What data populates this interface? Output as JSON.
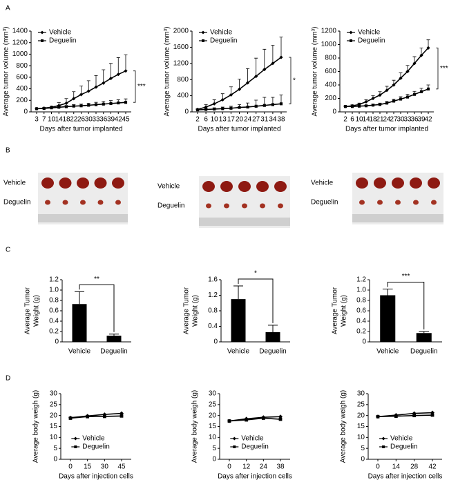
{
  "panel_labels": [
    "A",
    "B",
    "C",
    "D"
  ],
  "photos": [
    {
      "labels": [
        "Vehicle",
        "Deguelin"
      ]
    },
    {
      "labels": [
        "Vehicle",
        "Deguelin"
      ]
    },
    {
      "labels": [
        "Vehicle",
        "Deguelin"
      ]
    }
  ],
  "chart_data": [
    {
      "type": "line",
      "ylabel": "Average tumor volume (mm³)",
      "xlabel": "Days after tumor implanted",
      "legend": "upper left",
      "significance": "***",
      "categories": [
        "3",
        "7",
        "10",
        "14",
        "18",
        "22",
        "26",
        "30",
        "33",
        "36",
        "39",
        "42",
        "45"
      ],
      "ylim": [
        0,
        1400
      ],
      "yticks": [
        0,
        200,
        400,
        600,
        800,
        1000,
        1200,
        1400
      ],
      "series": [
        {
          "name": "Vehicle",
          "color": "#000000",
          "marker": "diamond",
          "values": [
            55,
            65,
            80,
            110,
            150,
            230,
            300,
            360,
            430,
            500,
            580,
            650,
            710
          ],
          "errors": [
            5,
            10,
            20,
            50,
            80,
            120,
            150,
            180,
            200,
            230,
            260,
            290,
            280
          ]
        },
        {
          "name": "Deguelin",
          "color": "#000000",
          "marker": "square",
          "values": [
            55,
            60,
            70,
            80,
            90,
            100,
            105,
            115,
            125,
            135,
            145,
            155,
            165
          ],
          "errors": [
            5,
            8,
            10,
            15,
            20,
            25,
            30,
            35,
            40,
            45,
            50,
            55,
            60
          ]
        }
      ]
    },
    {
      "type": "line",
      "ylabel": "Average tumor volume (mm³)",
      "xlabel": "Days after tumor implanted",
      "legend": "upper left",
      "significance": "*",
      "categories": [
        "2",
        "6",
        "10",
        "13",
        "17",
        "20",
        "24",
        "27",
        "31",
        "34",
        "38"
      ],
      "ylim": [
        0,
        2000
      ],
      "yticks": [
        0,
        400,
        800,
        1200,
        1600,
        2000
      ],
      "series": [
        {
          "name": "Vehicle",
          "color": "#000000",
          "marker": "diamond",
          "values": [
            60,
            120,
            200,
            300,
            420,
            560,
            720,
            880,
            1050,
            1200,
            1350
          ],
          "errors": [
            20,
            60,
            100,
            150,
            200,
            250,
            350,
            450,
            500,
            450,
            500
          ]
        },
        {
          "name": "Deguelin",
          "color": "#000000",
          "marker": "square",
          "values": [
            50,
            60,
            70,
            80,
            90,
            110,
            120,
            140,
            160,
            180,
            200
          ],
          "errors": [
            10,
            20,
            30,
            40,
            50,
            70,
            100,
            150,
            200,
            180,
            220
          ]
        }
      ]
    },
    {
      "type": "line",
      "ylabel": "Average tumor volume (mm³)",
      "xlabel": "Days after tumor implanted",
      "legend": "upper left",
      "significance": "***",
      "categories": [
        "2",
        "6",
        "10",
        "14",
        "18",
        "21",
        "24",
        "27",
        "30",
        "33",
        "36",
        "39",
        "42"
      ],
      "ylim": [
        0,
        1200
      ],
      "yticks": [
        0,
        200,
        400,
        600,
        800,
        1000,
        1200
      ],
      "series": [
        {
          "name": "Vehicle",
          "color": "#000000",
          "marker": "diamond",
          "values": [
            80,
            90,
            110,
            150,
            200,
            250,
            320,
            400,
            500,
            600,
            720,
            840,
            950
          ],
          "errors": [
            10,
            15,
            20,
            30,
            40,
            50,
            60,
            70,
            80,
            90,
            100,
            110,
            120
          ]
        },
        {
          "name": "Deguelin",
          "color": "#000000",
          "marker": "square",
          "values": [
            80,
            80,
            85,
            90,
            100,
            110,
            130,
            160,
            190,
            220,
            260,
            300,
            340
          ],
          "errors": [
            5,
            5,
            8,
            10,
            15,
            20,
            25,
            30,
            35,
            40,
            45,
            50,
            60
          ]
        }
      ]
    },
    {
      "type": "bar",
      "ylabel": [
        "Average Tumor",
        "Weight (g)"
      ],
      "significance": "**",
      "color": "#000000",
      "categories": [
        "Vehicle",
        "Deguelin"
      ],
      "values": [
        0.73,
        0.12
      ],
      "errors": [
        0.24,
        0.03
      ],
      "ylim": [
        0,
        1.2
      ],
      "yticks": [
        0,
        0.2,
        0.4,
        0.6,
        0.8,
        {
          "value": 1,
          "label": "1.0"
        },
        1.2
      ]
    },
    {
      "type": "bar",
      "ylabel": [
        "Average Tumor",
        "Weight (g)"
      ],
      "significance": "*",
      "color": "#000000",
      "categories": [
        "Vehicle",
        "Deguelin"
      ],
      "values": [
        1.1,
        0.25
      ],
      "errors": [
        0.34,
        0.18
      ],
      "ylim": [
        0,
        1.6
      ],
      "yticks": [
        0,
        0.4,
        0.8,
        1.2,
        1.6
      ]
    },
    {
      "type": "bar",
      "ylabel": [
        "Average Tumor",
        "Weight (g)"
      ],
      "significance": "***",
      "color": "#000000",
      "categories": [
        "Vehicle",
        "Deguelin"
      ],
      "values": [
        0.9,
        0.17
      ],
      "errors": [
        0.12,
        0.03
      ],
      "ylim": [
        0,
        1.2
      ],
      "yticks": [
        0,
        0.2,
        0.4,
        0.6,
        0.8,
        {
          "value": 1,
          "label": "1.0"
        },
        1.2
      ]
    },
    {
      "type": "line",
      "ylabel": "Average body weigh (g)",
      "xlabel": "Days after injection cells",
      "legend": "lower center",
      "categories": [
        "0",
        "15",
        "30",
        "45"
      ],
      "ylim": [
        0,
        30
      ],
      "yticks": [
        0,
        5,
        10,
        15,
        20,
        25,
        30
      ],
      "series": [
        {
          "name": "Vehicle",
          "color": "#000000",
          "marker": "diamond",
          "values": [
            19,
            19.8,
            20.5,
            21
          ]
        },
        {
          "name": "Deguelin",
          "color": "#000000",
          "marker": "square",
          "values": [
            18.8,
            19.5,
            19.6,
            19.8
          ]
        }
      ]
    },
    {
      "type": "line",
      "ylabel": "Average body weigh (g)",
      "xlabel": "Days after injection cells",
      "legend": "lower center",
      "categories": [
        "0",
        "12",
        "24",
        "38"
      ],
      "ylim": [
        0,
        30
      ],
      "yticks": [
        0,
        5,
        10,
        15,
        20,
        25,
        30
      ],
      "series": [
        {
          "name": "Vehicle",
          "color": "#000000",
          "marker": "diamond",
          "values": [
            17.5,
            18.5,
            19.2,
            19.5
          ]
        },
        {
          "name": "Deguelin",
          "color": "#000000",
          "marker": "square",
          "values": [
            17.5,
            18,
            18.8,
            18.3
          ]
        }
      ]
    },
    {
      "type": "line",
      "ylabel": "Average body weigh (g)",
      "xlabel": "Days after injection cells",
      "legend": "lower center",
      "categories": [
        "0",
        "14",
        "28",
        "42"
      ],
      "ylim": [
        0,
        30
      ],
      "yticks": [
        0,
        5,
        10,
        15,
        20,
        25,
        30
      ],
      "series": [
        {
          "name": "Vehicle",
          "color": "#000000",
          "marker": "diamond",
          "values": [
            19.5,
            20.2,
            21,
            21.3
          ]
        },
        {
          "name": "Deguelin",
          "color": "#000000",
          "marker": "square",
          "values": [
            19.5,
            19.7,
            20,
            20.2
          ]
        }
      ]
    }
  ]
}
